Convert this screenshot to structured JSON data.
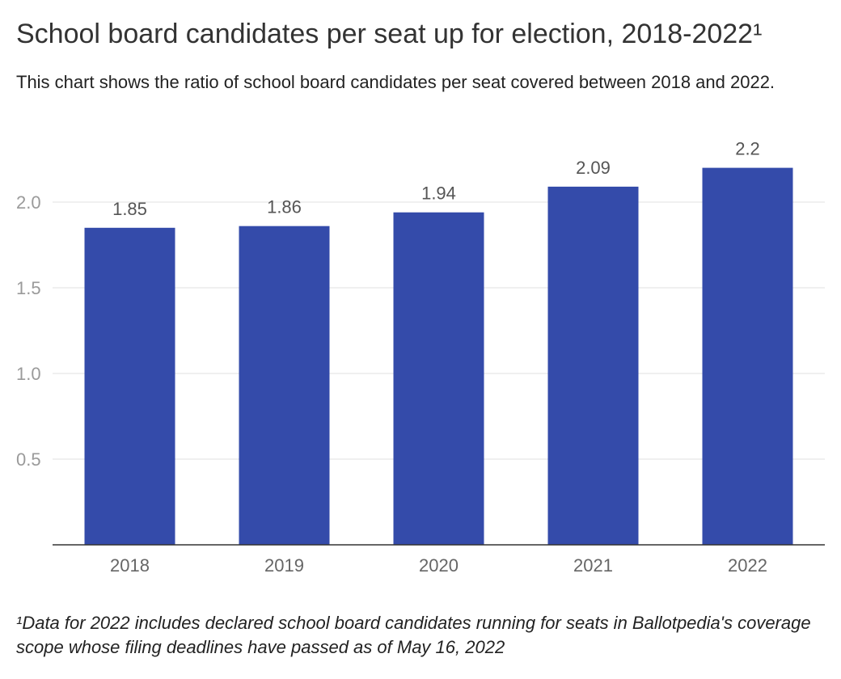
{
  "title": "School board candidates per seat up for election, 2018-2022¹",
  "subtitle": "This chart shows the ratio of school board candidates per seat covered between 2018 and 2022.",
  "footnote": "¹Data for 2022 includes declared school board candidates running for seats in Ballotpedia's coverage scope whose filing deadlines have passed as of May 16, 2022",
  "colors": {
    "bar": "#344BAA"
  },
  "chart_data": {
    "type": "bar",
    "categories": [
      "2018",
      "2019",
      "2020",
      "2021",
      "2022"
    ],
    "values": [
      1.85,
      1.86,
      1.94,
      2.09,
      2.2
    ],
    "data_labels": [
      "1.85",
      "1.86",
      "1.94",
      "2.09",
      "2.2"
    ],
    "yticks": [
      0.5,
      1.0,
      1.5,
      2.0
    ],
    "ytick_labels": [
      "0.5",
      "1.0",
      "1.5",
      "2.0"
    ],
    "ylim": [
      0,
      2.2
    ],
    "xlabel": "",
    "ylabel": "",
    "grid": true,
    "legend": "none"
  }
}
